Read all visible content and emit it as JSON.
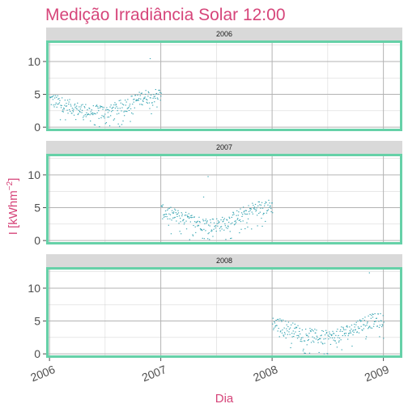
{
  "chart_data": {
    "type": "scatter",
    "title": "Medição Irradiância Solar 12:00",
    "xlabel": "Dia",
    "ylabel": "I  [kWhm⁻²]",
    "ylabel_main": "I  [kWhm",
    "ylabel_exp": "−2",
    "ylabel_close": "]",
    "xlim": [
      2005.97,
      2009.17
    ],
    "ylim": [
      -0.6,
      13.2
    ],
    "x_ticks": [
      2006,
      2007,
      2008,
      2009
    ],
    "x_tick_labels": [
      "2006",
      "2007",
      "2008",
      "2009"
    ],
    "y_ticks": [
      0,
      5,
      10
    ],
    "y_tick_labels": [
      "0",
      "5",
      "10"
    ],
    "grid": true,
    "colors": {
      "title": "#d6457a",
      "axis_label": "#d6457a",
      "points": "#3aa6b3",
      "panel_border": "#66d1a8",
      "strip_fill": "#d9d9d9",
      "grid": "#b3b3b3"
    },
    "facets": [
      {
        "label": "2006",
        "x_range": [
          2006.0,
          2007.0
        ],
        "profile": [
          [
            0.0,
            4.3
          ],
          [
            0.1,
            3.6
          ],
          [
            0.25,
            2.8
          ],
          [
            0.38,
            2.4
          ],
          [
            0.45,
            2.3
          ],
          [
            0.55,
            2.5
          ],
          [
            0.7,
            3.6
          ],
          [
            0.85,
            4.7
          ],
          [
            1.0,
            5.0
          ]
        ],
        "outliers": [
          [
            2006.9,
            10.5
          ]
        ]
      },
      {
        "label": "2007",
        "x_range": [
          2007.0,
          2008.0
        ],
        "profile": [
          [
            0.0,
            4.5
          ],
          [
            0.15,
            3.7
          ],
          [
            0.3,
            2.9
          ],
          [
            0.45,
            2.4
          ],
          [
            0.55,
            2.6
          ],
          [
            0.7,
            3.8
          ],
          [
            0.85,
            5.0
          ],
          [
            1.0,
            5.3
          ]
        ],
        "outliers": [
          [
            2007.42,
            9.8
          ],
          [
            2007.38,
            6.7
          ]
        ]
      },
      {
        "label": "2008",
        "x_range": [
          2008.0,
          2009.0
        ],
        "profile": [
          [
            0.0,
            4.7
          ],
          [
            0.12,
            4.1
          ],
          [
            0.3,
            3.0
          ],
          [
            0.45,
            2.5
          ],
          [
            0.55,
            2.6
          ],
          [
            0.7,
            3.7
          ],
          [
            0.85,
            5.0
          ],
          [
            1.0,
            5.2
          ]
        ],
        "outliers": [
          [
            2008.87,
            12.4
          ]
        ]
      }
    ]
  }
}
